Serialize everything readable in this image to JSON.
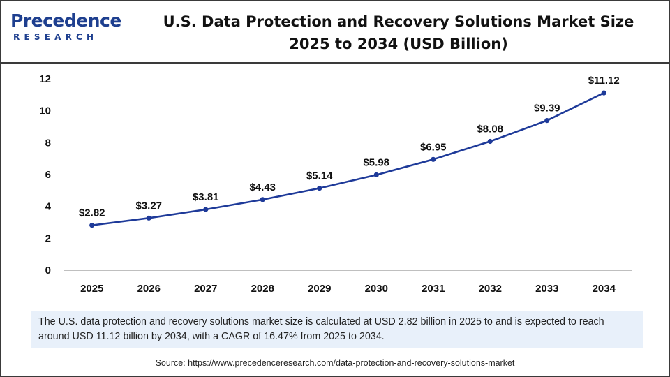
{
  "brand": {
    "logo_main": "Precedence",
    "logo_sub": "RESEARCH",
    "color": "#1e3f8f"
  },
  "chart_data": {
    "type": "line",
    "title": "U.S. Data Protection and Recovery Solutions Market Size 2025 to 2034 (USD Billion)",
    "title_lines": [
      "U.S. Data Protection and Recovery Solutions Market Size",
      "2025 to 2034 (USD Billion)"
    ],
    "xlabel": "",
    "ylabel": "",
    "categories": [
      "2025",
      "2026",
      "2027",
      "2028",
      "2029",
      "2030",
      "2031",
      "2032",
      "2033",
      "2034"
    ],
    "series": [
      {
        "name": "Market Size",
        "values": [
          2.82,
          3.27,
          3.81,
          4.43,
          5.14,
          5.98,
          6.95,
          8.08,
          9.39,
          11.12
        ],
        "labels": [
          "$2.82",
          "$3.27",
          "$3.81",
          "$4.43",
          "$5.14",
          "$5.98",
          "$6.95",
          "$8.08",
          "$9.39",
          "$11.12"
        ],
        "color": "#1e3a99"
      }
    ],
    "ylim": [
      0,
      12
    ],
    "yticks": [
      "0",
      "2",
      "4",
      "6",
      "8",
      "10",
      "12"
    ],
    "grid": false,
    "legend": "none"
  },
  "summary_text": "The U.S. data protection and recovery solutions market size is calculated at USD 2.82 billion in 2025 to and is expected to reach around USD 11.12 billion by 2034, with a CAGR of 16.47% from 2025 to 2034.",
  "source_text": "Source: https://www.precedenceresearch.com/data-protection-and-recovery-solutions-market"
}
